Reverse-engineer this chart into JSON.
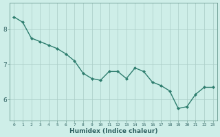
{
  "xlabel": "Humidex (Indice chaleur)",
  "x_values": [
    0,
    1,
    2,
    3,
    4,
    5,
    6,
    7,
    8,
    9,
    10,
    11,
    12,
    13,
    14,
    15,
    16,
    17,
    18,
    19,
    20,
    21,
    22,
    23
  ],
  "y_values": [
    8.35,
    8.2,
    7.75,
    7.65,
    7.55,
    7.45,
    7.3,
    7.1,
    6.75,
    6.6,
    6.55,
    6.8,
    6.8,
    6.6,
    6.9,
    6.8,
    6.5,
    6.4,
    6.25,
    5.75,
    5.8,
    6.15,
    6.35,
    6.35
  ],
  "line_color": "#2e7d6e",
  "marker": "D",
  "marker_size": 2.0,
  "line_width": 1.0,
  "bg_color": "#ceeee8",
  "grid_color": "#aaccc6",
  "axis_color": "#6a9a90",
  "tick_color": "#2e6060",
  "ylim": [
    5.4,
    8.75
  ],
  "yticks": [
    6,
    7,
    8
  ],
  "xlim": [
    -0.5,
    23.5
  ]
}
